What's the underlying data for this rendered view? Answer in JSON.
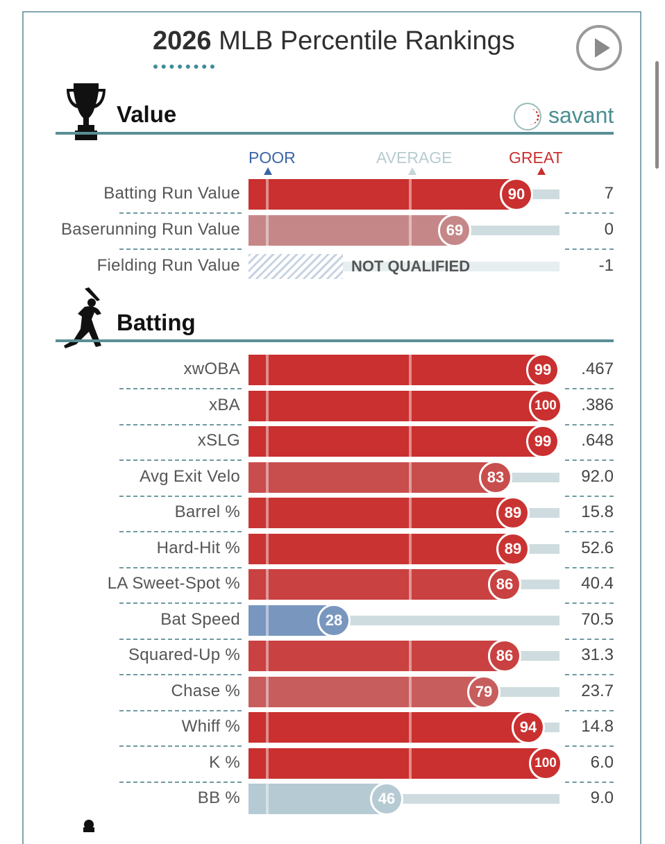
{
  "header": {
    "year": "2026",
    "title": "MLB Percentile Rankings"
  },
  "brand": {
    "name": "savant"
  },
  "icons": {
    "play": "play-icon",
    "trophy": "trophy-icon",
    "batter": "batter-icon",
    "savant": "baseball-icon"
  },
  "colors": {
    "great": "#c9302f",
    "average": "#c4d5d8",
    "poor": "#3b64a8"
  },
  "chart_data": [
    {
      "type": "bar",
      "title": "Value",
      "scale_labels": {
        "poor": "POOR",
        "average": "AVERAGE",
        "great": "GREAT"
      },
      "xlim": [
        0,
        100
      ],
      "rows": [
        {
          "label": "Batting Run Value",
          "percentile": 90,
          "value": "7"
        },
        {
          "label": "Baserunning Run Value",
          "percentile": 69,
          "value": "0"
        },
        {
          "label": "Fielding Run Value",
          "percentile": null,
          "status": "NOT QUALIFIED",
          "value": "-1"
        }
      ]
    },
    {
      "type": "bar",
      "title": "Batting",
      "xlim": [
        0,
        100
      ],
      "rows": [
        {
          "label": "xwOBA",
          "percentile": 99,
          "value": ".467"
        },
        {
          "label": "xBA",
          "percentile": 100,
          "value": ".386"
        },
        {
          "label": "xSLG",
          "percentile": 99,
          "value": ".648"
        },
        {
          "label": "Avg Exit Velo",
          "percentile": 83,
          "value": "92.0"
        },
        {
          "label": "Barrel %",
          "percentile": 89,
          "value": "15.8"
        },
        {
          "label": "Hard-Hit %",
          "percentile": 89,
          "value": "52.6"
        },
        {
          "label": "LA Sweet-Spot %",
          "percentile": 86,
          "value": "40.4"
        },
        {
          "label": "Bat Speed",
          "percentile": 28,
          "value": "70.5"
        },
        {
          "label": "Squared-Up %",
          "percentile": 86,
          "value": "31.3"
        },
        {
          "label": "Chase %",
          "percentile": 79,
          "value": "23.7"
        },
        {
          "label": "Whiff %",
          "percentile": 94,
          "value": "14.8"
        },
        {
          "label": "K %",
          "percentile": 100,
          "value": "6.0"
        },
        {
          "label": "BB %",
          "percentile": 46,
          "value": "9.0"
        }
      ]
    }
  ]
}
